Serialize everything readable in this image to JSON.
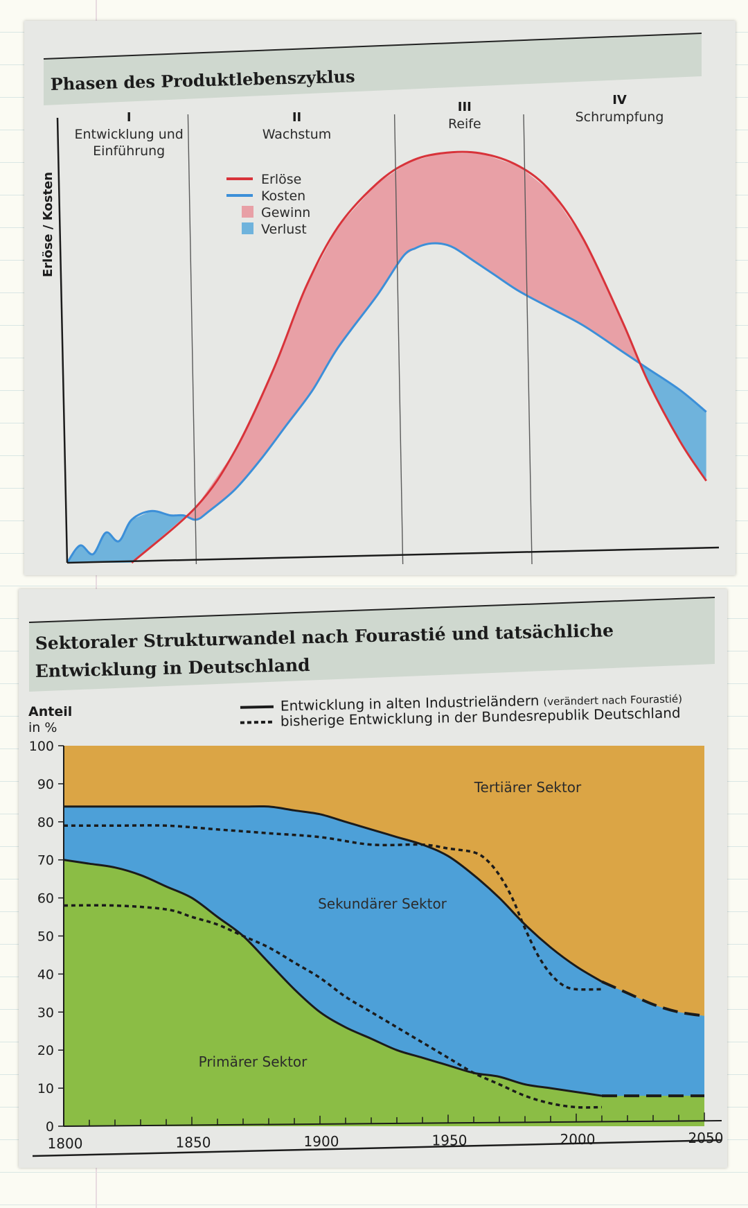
{
  "colors": {
    "erloese": "#d8333a",
    "kosten": "#3c8fd8",
    "gewinn": "#e8a0a6",
    "verlust": "#6fb3dc",
    "tertiaer": "#dba545",
    "sekundaer": "#4da0d8",
    "primaer": "#8bbd45",
    "header_band": "#cfd8cf",
    "ink": "#1b1b1b"
  },
  "chart_data": [
    {
      "type": "area",
      "title": "Phasen des Produktlebenszyklus",
      "ylabel": "Erlöse / Kosten",
      "xlabel": "",
      "x_unit": "time (unlabeled)",
      "phases": [
        {
          "num": "I",
          "name_line1": "Entwicklung und",
          "name_line2": "Einführung"
        },
        {
          "num": "II",
          "name_line1": "Wachstum",
          "name_line2": ""
        },
        {
          "num": "III",
          "name_line1": "Reife",
          "name_line2": ""
        },
        {
          "num": "IV",
          "name_line1": "Schrumpfung",
          "name_line2": ""
        }
      ],
      "phase_boundaries": [
        20,
        52,
        72
      ],
      "legend": [
        {
          "key": "erloese",
          "label": "Erlöse",
          "kind": "line"
        },
        {
          "key": "kosten",
          "label": "Kosten",
          "kind": "line"
        },
        {
          "key": "gewinn",
          "label": "Gewinn",
          "kind": "patch"
        },
        {
          "key": "verlust",
          "label": "Verlust",
          "kind": "patch"
        }
      ],
      "legend_position": "top-left of phase II",
      "xlim": [
        0,
        100
      ],
      "ylim": [
        0,
        100
      ],
      "series": [
        {
          "name": "Erlöse",
          "x": [
            10,
            20,
            26,
            32,
            37,
            42,
            48,
            53,
            58,
            64,
            70,
            75,
            80,
            86,
            90,
            95,
            99
          ],
          "y": [
            0,
            13,
            26,
            45,
            64,
            78,
            88,
            93,
            95,
            95,
            92,
            86,
            75,
            56,
            42,
            28,
            19
          ]
        },
        {
          "name": "Kosten",
          "x": [
            0,
            2,
            4,
            6,
            8,
            10,
            13,
            16,
            18,
            20,
            22,
            26,
            30,
            34,
            38,
            42,
            48,
            52,
            54,
            56,
            58,
            60,
            63,
            66,
            70,
            75,
            80,
            86,
            90,
            95,
            99
          ],
          "y": [
            0,
            4,
            2,
            7,
            5,
            10,
            12,
            11,
            11,
            10,
            12,
            17,
            24,
            32,
            40,
            50,
            62,
            71,
            73,
            74,
            74,
            73,
            70,
            67,
            63,
            59,
            55,
            49,
            45,
            40,
            35
          ]
        }
      ]
    },
    {
      "type": "area",
      "title": "Sektoraler Strukturwandel nach Fourastié und tatsächliche Entwicklung in Deutschland",
      "title_line1": "Sektoraler Strukturwandel nach Fourastié und tatsächliche",
      "title_line2": "Entwicklung in Deutschland",
      "ylabel_line1": "Anteil",
      "ylabel_line2": "in %",
      "xlim": [
        1800,
        2050
      ],
      "ylim": [
        0,
        100
      ],
      "x_ticks": [
        1800,
        1850,
        1900,
        1950,
        2000,
        2050
      ],
      "y_ticks": [
        0,
        10,
        20,
        30,
        40,
        50,
        60,
        70,
        80,
        90,
        100
      ],
      "legend": [
        {
          "style": "solid",
          "label": "Entwicklung in alten Industrieländern",
          "note": "(verändert nach Fourastié)"
        },
        {
          "style": "dotted",
          "label": "bisherige Entwicklung in der Bundesrepublik Deutschland",
          "note": ""
        }
      ],
      "legend_position": "top",
      "sector_labels": {
        "tertiaer": "Tertiärer Sektor",
        "sekundaer": "Sekundärer Sektor",
        "primaer": "Primärer Sektor"
      },
      "series": [
        {
          "name": "Entwicklung in alten Industrieländern",
          "boundary": "primaer_sekundaer",
          "x": [
            1800,
            1810,
            1820,
            1830,
            1840,
            1850,
            1860,
            1870,
            1880,
            1890,
            1900,
            1910,
            1920,
            1930,
            1940,
            1950,
            1960,
            1970,
            1980,
            1990,
            2000,
            2010,
            2020,
            2030,
            2040,
            2050
          ],
          "y": [
            70,
            69,
            68,
            66,
            63,
            60,
            55,
            50,
            43,
            36,
            30,
            26,
            23,
            20,
            18,
            16,
            14,
            13,
            11,
            10,
            9,
            8,
            8,
            8,
            8,
            8
          ]
        },
        {
          "name": "Entwicklung in alten Industrieländern",
          "boundary": "sekundaer_tertiaer",
          "x": [
            1800,
            1810,
            1820,
            1830,
            1840,
            1850,
            1860,
            1870,
            1880,
            1890,
            1900,
            1910,
            1920,
            1930,
            1940,
            1950,
            1960,
            1970,
            1980,
            1990,
            2000,
            2010,
            2020,
            2030,
            2040,
            2050
          ],
          "y": [
            84,
            84,
            84,
            84,
            84,
            84,
            84,
            84,
            84,
            83,
            82,
            80,
            78,
            76,
            74,
            71,
            66,
            60,
            53,
            47,
            42,
            38,
            35,
            32,
            30,
            29
          ]
        },
        {
          "name": "bisherige Entwicklung in der Bundesrepublik Deutschland",
          "boundary": "primaer_sekundaer",
          "x": [
            1800,
            1820,
            1840,
            1850,
            1860,
            1870,
            1880,
            1890,
            1900,
            1910,
            1920,
            1930,
            1940,
            1950,
            1960,
            1970,
            1980,
            1990,
            2000,
            2010
          ],
          "y": [
            58,
            58,
            57,
            55,
            53,
            50,
            47,
            43,
            39,
            34,
            30,
            26,
            22,
            18,
            14,
            11,
            8,
            6,
            5,
            5
          ]
        },
        {
          "name": "bisherige Entwicklung in der Bundesrepublik Deutschland",
          "boundary": "sekundaer_tertiaer",
          "x": [
            1800,
            1820,
            1840,
            1860,
            1880,
            1900,
            1920,
            1940,
            1950,
            1960,
            1965,
            1970,
            1975,
            1980,
            1985,
            1990,
            1995,
            2000,
            2010
          ],
          "y": [
            79,
            79,
            79,
            78,
            77,
            76,
            74,
            74,
            73,
            72,
            70,
            66,
            60,
            52,
            45,
            40,
            37,
            36,
            36
          ]
        }
      ]
    }
  ]
}
